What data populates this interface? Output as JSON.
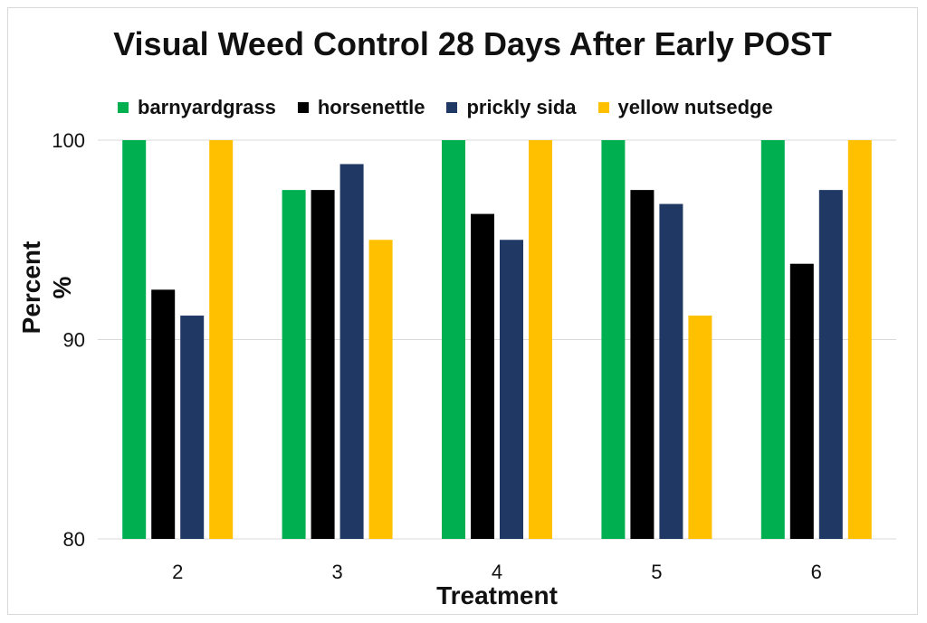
{
  "chart_data": {
    "type": "bar",
    "title": "Visual Weed Control 28 Days After Early POST",
    "xlabel": "Treatment",
    "ylabel_line1": "Percent",
    "ylabel_line2": "%",
    "categories": [
      "2",
      "3",
      "4",
      "5",
      "6"
    ],
    "ylim": [
      80,
      100
    ],
    "yticks": [
      80,
      90,
      100
    ],
    "grid": true,
    "legend_position": "top",
    "series": [
      {
        "name": "barnyardgrass",
        "color": "#00b050",
        "values": [
          100,
          97.5,
          100,
          100,
          100
        ]
      },
      {
        "name": "horsenettle",
        "color": "#000000",
        "values": [
          92.5,
          97.5,
          96.3,
          97.5,
          93.8
        ]
      },
      {
        "name": "prickly sida",
        "color": "#1f3864",
        "values": [
          91.2,
          98.8,
          95.0,
          96.8,
          97.5
        ]
      },
      {
        "name": "yellow nutsedge",
        "color": "#ffc000",
        "values": [
          100,
          95.0,
          100,
          91.2,
          100
        ]
      }
    ]
  }
}
